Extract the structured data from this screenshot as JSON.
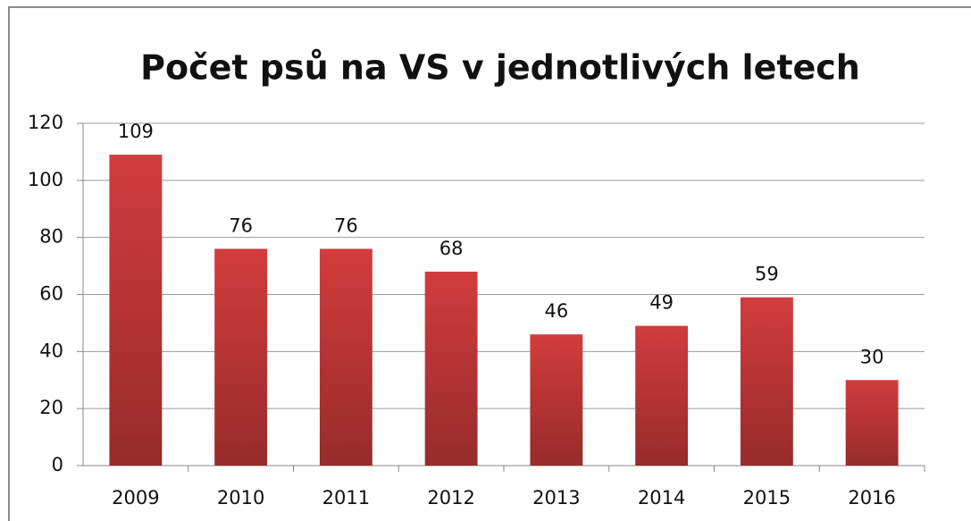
{
  "chart_data": {
    "type": "bar",
    "title": "Počet psů na VS v jednotlivých letech",
    "categories": [
      "2009",
      "2010",
      "2011",
      "2012",
      "2013",
      "2014",
      "2015",
      "2016"
    ],
    "values": [
      109,
      76,
      76,
      68,
      46,
      49,
      59,
      30
    ],
    "color": "#d23c3c",
    "ylim": [
      0,
      120
    ],
    "yticks": [
      0,
      20,
      40,
      60,
      80,
      100,
      120
    ],
    "grid": true
  }
}
